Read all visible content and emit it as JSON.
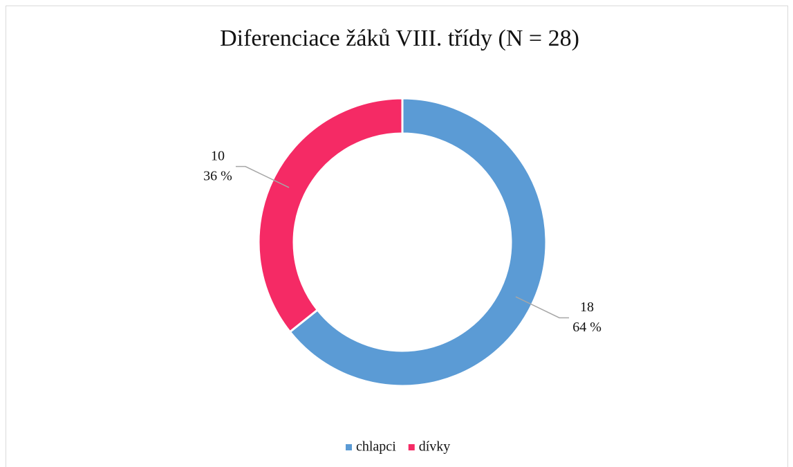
{
  "chart_data": {
    "type": "donut",
    "title": "Diferenciace žáků VIII. třídy (N = 28)",
    "categories": [
      "chlapci",
      "dívky"
    ],
    "values": [
      18,
      10
    ],
    "percent_labels": [
      "64 %",
      "36 %"
    ],
    "colors": [
      "#5b9bd5",
      "#f52a65"
    ],
    "legend": "bottom"
  }
}
